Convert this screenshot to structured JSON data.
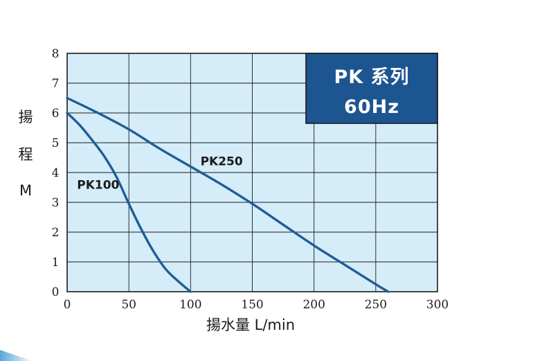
{
  "chart_data": {
    "type": "line",
    "title_lines": [
      "PK 系列",
      "60Hz"
    ],
    "ylabel_chars": [
      "揚",
      "程",
      "M"
    ],
    "xlabel": "揚水量 L/min",
    "xlim": [
      0,
      300
    ],
    "ylim": [
      0,
      8
    ],
    "x_ticks": [
      "0",
      "50",
      "100",
      "150",
      "200",
      "250",
      "300"
    ],
    "y_ticks": [
      "0",
      "1",
      "2",
      "3",
      "4",
      "5",
      "6",
      "7",
      "8"
    ],
    "grid": true,
    "series": [
      {
        "name": "PK100",
        "points": [
          [
            0,
            6.0
          ],
          [
            10,
            5.6
          ],
          [
            20,
            5.1
          ],
          [
            30,
            4.55
          ],
          [
            40,
            3.85
          ],
          [
            50,
            2.95
          ],
          [
            60,
            2.1
          ],
          [
            70,
            1.35
          ],
          [
            80,
            0.75
          ],
          [
            90,
            0.35
          ],
          [
            100,
            0.0
          ]
        ]
      },
      {
        "name": "PK250",
        "points": [
          [
            0,
            6.5
          ],
          [
            25,
            6.0
          ],
          [
            50,
            5.45
          ],
          [
            75,
            4.8
          ],
          [
            100,
            4.2
          ],
          [
            125,
            3.6
          ],
          [
            150,
            2.95
          ],
          [
            175,
            2.25
          ],
          [
            200,
            1.55
          ],
          [
            225,
            0.9
          ],
          [
            250,
            0.25
          ],
          [
            260,
            0.0
          ]
        ]
      }
    ],
    "colors": {
      "plot_bg": "#d5ecf9",
      "grid": "#1a1a1a",
      "line": "#1f5d95",
      "title_box": "#1d5591"
    }
  }
}
